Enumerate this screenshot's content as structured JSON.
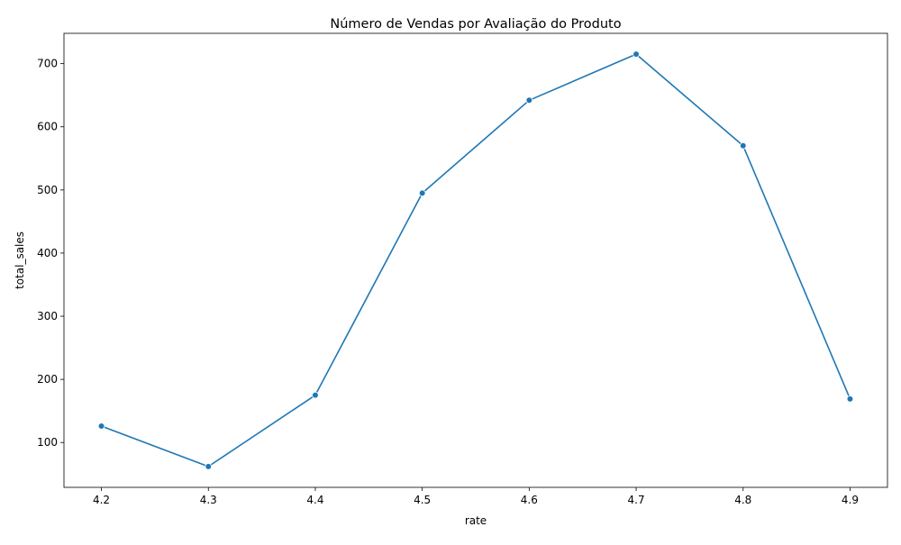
{
  "chart_data": {
    "type": "line",
    "title": "Número de Vendas por Avaliação do Produto",
    "xlabel": "rate",
    "ylabel": "total_sales",
    "x": [
      4.2,
      4.3,
      4.4,
      4.5,
      4.6,
      4.7,
      4.8,
      4.9
    ],
    "series": [
      {
        "values": [
          126,
          62,
          175,
          495,
          642,
          715,
          570,
          169
        ]
      }
    ],
    "xticks": [
      "4.2",
      "4.3",
      "4.4",
      "4.5",
      "4.6",
      "4.7",
      "4.8",
      "4.9"
    ],
    "yticks": [
      "100",
      "200",
      "300",
      "400",
      "500",
      "600",
      "700"
    ],
    "xlim": [
      4.165,
      4.935
    ],
    "ylim": [
      29,
      748
    ],
    "grid": false,
    "marker": "circle",
    "line_color": "#1f77b4"
  }
}
